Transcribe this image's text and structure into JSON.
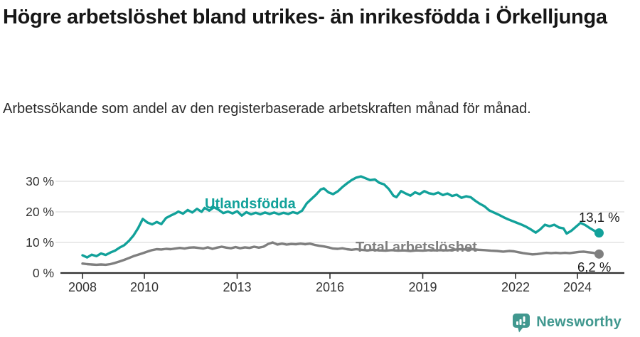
{
  "title": "Högre arbetslöshet bland utrikes- än inrikesfödda i Örkelljunga",
  "subtitle": "Arbetssökande som andel av den registerbaserade arbetskraften månad för månad.",
  "footer": {
    "brand": "Newsworthy"
  },
  "colors": {
    "foreign_line": "#12a19a",
    "total_line": "#7f7f7f",
    "axis": "#303030",
    "grid": "#dedede",
    "tick_text": "#333333",
    "value_text": "#1a1a1a",
    "brand": "#41988f"
  },
  "chart_data": {
    "type": "line",
    "unit": "%",
    "x_axis": {
      "ticks": [
        2008,
        2010,
        2013,
        2016,
        2019,
        2022,
        2024
      ],
      "range": [
        2007.3,
        2025.4
      ]
    },
    "y_axis": {
      "ticks": [
        0,
        10,
        20,
        30
      ],
      "tick_labels": [
        "0 %",
        "10 %",
        "20 %",
        "30 %"
      ],
      "range": [
        0,
        33
      ],
      "grid": true
    },
    "series": [
      {
        "name": "Utlandsfödda",
        "color": "#12a19a",
        "end_label": "13,1 %",
        "end_value": 13.1,
        "points": [
          [
            2008.0,
            5.8
          ],
          [
            2008.15,
            5.1
          ],
          [
            2008.3,
            6.0
          ],
          [
            2008.45,
            5.5
          ],
          [
            2008.6,
            6.4
          ],
          [
            2008.75,
            5.9
          ],
          [
            2008.9,
            6.7
          ],
          [
            2009.05,
            7.3
          ],
          [
            2009.2,
            8.3
          ],
          [
            2009.35,
            9.1
          ],
          [
            2009.5,
            10.5
          ],
          [
            2009.65,
            12.3
          ],
          [
            2009.8,
            14.7
          ],
          [
            2009.95,
            17.7
          ],
          [
            2010.1,
            16.5
          ],
          [
            2010.25,
            15.9
          ],
          [
            2010.4,
            16.7
          ],
          [
            2010.55,
            16.0
          ],
          [
            2010.7,
            18.0
          ],
          [
            2010.85,
            18.8
          ],
          [
            2011.0,
            19.5
          ],
          [
            2011.1,
            20.1
          ],
          [
            2011.25,
            19.4
          ],
          [
            2011.4,
            20.6
          ],
          [
            2011.55,
            19.8
          ],
          [
            2011.7,
            21.0
          ],
          [
            2011.85,
            20.0
          ],
          [
            2011.95,
            21.3
          ],
          [
            2012.1,
            20.4
          ],
          [
            2012.25,
            21.5
          ],
          [
            2012.4,
            20.7
          ],
          [
            2012.55,
            19.6
          ],
          [
            2012.7,
            20.1
          ],
          [
            2012.85,
            19.5
          ],
          [
            2013.0,
            20.2
          ],
          [
            2013.15,
            18.8
          ],
          [
            2013.3,
            19.9
          ],
          [
            2013.45,
            19.2
          ],
          [
            2013.6,
            19.7
          ],
          [
            2013.75,
            19.2
          ],
          [
            2013.9,
            19.8
          ],
          [
            2014.05,
            19.3
          ],
          [
            2014.2,
            19.8
          ],
          [
            2014.35,
            19.2
          ],
          [
            2014.5,
            19.7
          ],
          [
            2014.65,
            19.3
          ],
          [
            2014.8,
            19.9
          ],
          [
            2014.95,
            19.5
          ],
          [
            2015.1,
            20.4
          ],
          [
            2015.25,
            22.8
          ],
          [
            2015.4,
            24.2
          ],
          [
            2015.55,
            25.6
          ],
          [
            2015.7,
            27.3
          ],
          [
            2015.8,
            27.7
          ],
          [
            2015.95,
            26.4
          ],
          [
            2016.1,
            25.8
          ],
          [
            2016.25,
            26.7
          ],
          [
            2016.4,
            28.1
          ],
          [
            2016.55,
            29.3
          ],
          [
            2016.7,
            30.4
          ],
          [
            2016.85,
            31.2
          ],
          [
            2017.0,
            31.6
          ],
          [
            2017.15,
            31.0
          ],
          [
            2017.3,
            30.4
          ],
          [
            2017.45,
            30.6
          ],
          [
            2017.6,
            29.5
          ],
          [
            2017.75,
            29.0
          ],
          [
            2017.9,
            27.5
          ],
          [
            2018.05,
            25.3
          ],
          [
            2018.15,
            24.8
          ],
          [
            2018.3,
            26.8
          ],
          [
            2018.45,
            26.0
          ],
          [
            2018.6,
            25.3
          ],
          [
            2018.75,
            26.4
          ],
          [
            2018.9,
            25.8
          ],
          [
            2019.05,
            26.8
          ],
          [
            2019.2,
            26.1
          ],
          [
            2019.35,
            25.8
          ],
          [
            2019.5,
            26.3
          ],
          [
            2019.65,
            25.5
          ],
          [
            2019.8,
            26.0
          ],
          [
            2019.95,
            25.2
          ],
          [
            2020.1,
            25.6
          ],
          [
            2020.25,
            24.6
          ],
          [
            2020.4,
            25.1
          ],
          [
            2020.55,
            24.8
          ],
          [
            2020.7,
            23.6
          ],
          [
            2020.85,
            22.6
          ],
          [
            2021.0,
            21.8
          ],
          [
            2021.15,
            20.5
          ],
          [
            2021.3,
            19.8
          ],
          [
            2021.45,
            19.1
          ],
          [
            2021.6,
            18.3
          ],
          [
            2021.75,
            17.6
          ],
          [
            2021.9,
            17.0
          ],
          [
            2022.05,
            16.4
          ],
          [
            2022.2,
            15.8
          ],
          [
            2022.35,
            15.1
          ],
          [
            2022.5,
            14.2
          ],
          [
            2022.65,
            13.2
          ],
          [
            2022.8,
            14.3
          ],
          [
            2022.95,
            15.8
          ],
          [
            2023.1,
            15.3
          ],
          [
            2023.25,
            15.8
          ],
          [
            2023.4,
            14.9
          ],
          [
            2023.55,
            14.6
          ],
          [
            2023.65,
            12.9
          ],
          [
            2023.8,
            13.8
          ],
          [
            2023.95,
            15.1
          ],
          [
            2024.1,
            16.4
          ],
          [
            2024.25,
            15.7
          ],
          [
            2024.4,
            14.7
          ],
          [
            2024.55,
            13.8
          ],
          [
            2024.7,
            13.1
          ]
        ]
      },
      {
        "name": "Total arbetslöshet",
        "color": "#7f7f7f",
        "end_label": "6,2 %",
        "end_value": 6.2,
        "points": [
          [
            2008.0,
            3.1
          ],
          [
            2008.15,
            2.9
          ],
          [
            2008.3,
            2.8
          ],
          [
            2008.45,
            2.7
          ],
          [
            2008.6,
            2.8
          ],
          [
            2008.75,
            2.7
          ],
          [
            2008.9,
            2.9
          ],
          [
            2009.05,
            3.3
          ],
          [
            2009.2,
            3.8
          ],
          [
            2009.35,
            4.3
          ],
          [
            2009.5,
            4.9
          ],
          [
            2009.65,
            5.5
          ],
          [
            2009.8,
            6.0
          ],
          [
            2009.95,
            6.5
          ],
          [
            2010.1,
            7.0
          ],
          [
            2010.25,
            7.5
          ],
          [
            2010.4,
            7.8
          ],
          [
            2010.55,
            7.7
          ],
          [
            2010.7,
            7.9
          ],
          [
            2010.85,
            7.8
          ],
          [
            2011.0,
            8.0
          ],
          [
            2011.15,
            8.2
          ],
          [
            2011.3,
            8.0
          ],
          [
            2011.45,
            8.3
          ],
          [
            2011.6,
            8.4
          ],
          [
            2011.75,
            8.2
          ],
          [
            2011.9,
            8.0
          ],
          [
            2012.05,
            8.4
          ],
          [
            2012.2,
            7.9
          ],
          [
            2012.35,
            8.3
          ],
          [
            2012.5,
            8.6
          ],
          [
            2012.65,
            8.3
          ],
          [
            2012.8,
            8.1
          ],
          [
            2012.95,
            8.5
          ],
          [
            2013.1,
            8.1
          ],
          [
            2013.25,
            8.4
          ],
          [
            2013.4,
            8.2
          ],
          [
            2013.55,
            8.6
          ],
          [
            2013.7,
            8.3
          ],
          [
            2013.85,
            8.6
          ],
          [
            2014.0,
            9.5
          ],
          [
            2014.15,
            10.0
          ],
          [
            2014.3,
            9.3
          ],
          [
            2014.45,
            9.6
          ],
          [
            2014.6,
            9.3
          ],
          [
            2014.75,
            9.5
          ],
          [
            2014.9,
            9.4
          ],
          [
            2015.05,
            9.6
          ],
          [
            2015.2,
            9.4
          ],
          [
            2015.35,
            9.6
          ],
          [
            2015.5,
            9.2
          ],
          [
            2015.65,
            8.9
          ],
          [
            2015.8,
            8.7
          ],
          [
            2015.95,
            8.4
          ],
          [
            2016.1,
            8.0
          ],
          [
            2016.25,
            7.9
          ],
          [
            2016.4,
            8.1
          ],
          [
            2016.55,
            7.8
          ],
          [
            2016.7,
            7.6
          ],
          [
            2016.85,
            7.8
          ],
          [
            2017.0,
            7.6
          ],
          [
            2017.2,
            7.4
          ],
          [
            2017.4,
            7.6
          ],
          [
            2017.6,
            7.4
          ],
          [
            2017.8,
            7.3
          ],
          [
            2018.0,
            7.5
          ],
          [
            2018.2,
            7.3
          ],
          [
            2018.4,
            7.4
          ],
          [
            2018.6,
            7.2
          ],
          [
            2018.8,
            7.4
          ],
          [
            2019.0,
            7.3
          ],
          [
            2019.2,
            7.5
          ],
          [
            2019.4,
            7.4
          ],
          [
            2019.6,
            7.5
          ],
          [
            2019.8,
            7.4
          ],
          [
            2020.0,
            7.6
          ],
          [
            2020.2,
            7.8
          ],
          [
            2020.4,
            7.7
          ],
          [
            2020.6,
            7.8
          ],
          [
            2020.8,
            7.6
          ],
          [
            2021.0,
            7.5
          ],
          [
            2021.2,
            7.3
          ],
          [
            2021.4,
            7.2
          ],
          [
            2021.6,
            7.0
          ],
          [
            2021.8,
            7.2
          ],
          [
            2021.95,
            7.1
          ],
          [
            2022.1,
            6.8
          ],
          [
            2022.25,
            6.5
          ],
          [
            2022.4,
            6.3
          ],
          [
            2022.55,
            6.1
          ],
          [
            2022.7,
            6.2
          ],
          [
            2022.85,
            6.4
          ],
          [
            2023.0,
            6.6
          ],
          [
            2023.15,
            6.5
          ],
          [
            2023.3,
            6.6
          ],
          [
            2023.45,
            6.5
          ],
          [
            2023.6,
            6.6
          ],
          [
            2023.75,
            6.5
          ],
          [
            2023.9,
            6.7
          ],
          [
            2024.05,
            6.9
          ],
          [
            2024.2,
            7.0
          ],
          [
            2024.35,
            6.8
          ],
          [
            2024.5,
            6.6
          ],
          [
            2024.6,
            6.4
          ],
          [
            2024.7,
            6.2
          ]
        ]
      }
    ]
  }
}
